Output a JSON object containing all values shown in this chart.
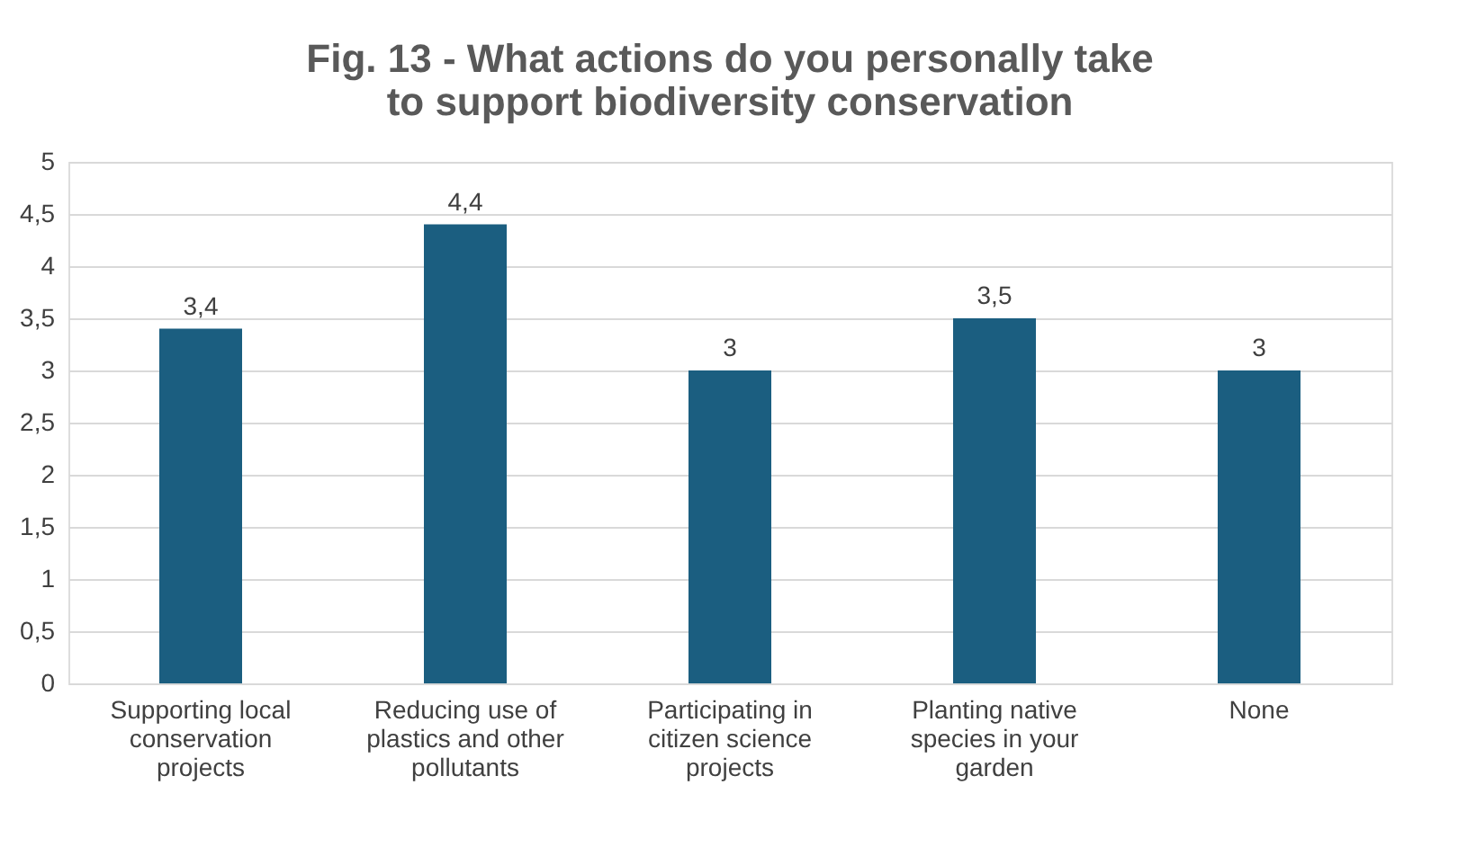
{
  "chart_data": {
    "type": "bar",
    "title": "Fig. 13 - What actions do you personally take to support biodiversity conservation",
    "categories": [
      "Supporting local conservation projects",
      "Reducing use of plastics and other pollutants",
      "Participating in citizen science projects",
      "Planting native species in your garden",
      "None"
    ],
    "values": [
      3.4,
      4.4,
      3,
      3.5,
      3
    ],
    "value_labels": [
      "3,4",
      "4,4",
      "3",
      "3,5",
      "3"
    ],
    "color": "#1b5e80",
    "ylim": [
      0,
      5
    ],
    "yticks": [
      0,
      {
        "value": 0.5,
        "label": "0,5"
      },
      1,
      {
        "value": 1.5,
        "label": "1,5"
      },
      2,
      {
        "value": 2.5,
        "label": "2,5"
      },
      3,
      {
        "value": 3.5,
        "label": "3,5"
      },
      4,
      {
        "value": 4.5,
        "label": "4,5"
      },
      5
    ],
    "grid": "y"
  }
}
